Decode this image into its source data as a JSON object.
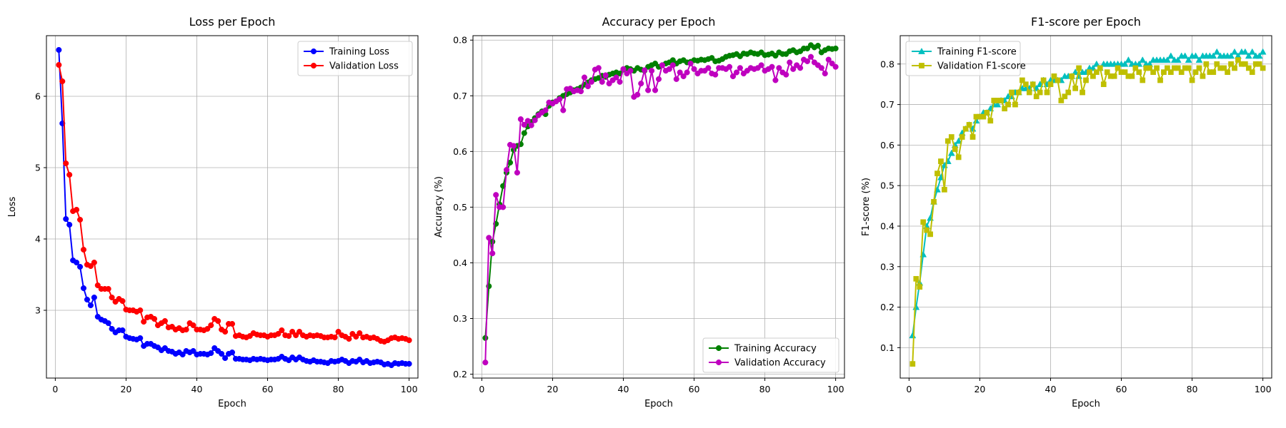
{
  "chart_data": [
    {
      "type": "line",
      "title": "Loss per Epoch",
      "xlabel": "Epoch",
      "ylabel": "Loss",
      "xlim": [
        -2.5,
        102.5
      ],
      "ylim": [
        2.05,
        6.85
      ],
      "xticks": [
        0,
        20,
        40,
        60,
        80,
        100
      ],
      "yticks": [
        3,
        4,
        5,
        6
      ],
      "grid": true,
      "legend_position": "upper right",
      "x": [
        1,
        2,
        3,
        4,
        5,
        6,
        7,
        8,
        9,
        10,
        11,
        12,
        13,
        14,
        15,
        16,
        17,
        18,
        19,
        20,
        21,
        22,
        23,
        24,
        25,
        26,
        27,
        28,
        29,
        30,
        31,
        32,
        33,
        34,
        35,
        36,
        37,
        38,
        39,
        40,
        41,
        42,
        43,
        44,
        45,
        46,
        47,
        48,
        49,
        50,
        51,
        52,
        53,
        54,
        55,
        56,
        57,
        58,
        59,
        60,
        61,
        62,
        63,
        64,
        65,
        66,
        67,
        68,
        69,
        70,
        71,
        72,
        73,
        74,
        75,
        76,
        77,
        78,
        79,
        80,
        81,
        82,
        83,
        84,
        85,
        86,
        87,
        88,
        89,
        90,
        91,
        92,
        93,
        94,
        95,
        96,
        97,
        98,
        99,
        100
      ],
      "series": [
        {
          "name": "Training Loss",
          "color": "#0000ff",
          "marker": "circle",
          "values": [
            6.65,
            5.62,
            4.28,
            4.2,
            3.7,
            3.67,
            3.61,
            3.31,
            3.15,
            3.07,
            3.18,
            2.91,
            2.87,
            2.85,
            2.82,
            2.74,
            2.69,
            2.72,
            2.72,
            2.63,
            2.61,
            2.6,
            2.59,
            2.61,
            2.5,
            2.53,
            2.53,
            2.5,
            2.48,
            2.44,
            2.47,
            2.43,
            2.42,
            2.39,
            2.41,
            2.38,
            2.43,
            2.41,
            2.43,
            2.38,
            2.39,
            2.39,
            2.38,
            2.4,
            2.47,
            2.43,
            2.39,
            2.33,
            2.39,
            2.41,
            2.32,
            2.32,
            2.31,
            2.31,
            2.3,
            2.32,
            2.31,
            2.32,
            2.31,
            2.3,
            2.31,
            2.31,
            2.32,
            2.35,
            2.32,
            2.3,
            2.34,
            2.31,
            2.34,
            2.31,
            2.29,
            2.28,
            2.3,
            2.28,
            2.28,
            2.27,
            2.26,
            2.29,
            2.28,
            2.29,
            2.31,
            2.29,
            2.26,
            2.29,
            2.28,
            2.31,
            2.27,
            2.29,
            2.26,
            2.27,
            2.28,
            2.27,
            2.24,
            2.25,
            2.23,
            2.26,
            2.25,
            2.26,
            2.25,
            2.25
          ]
        },
        {
          "name": "Validation Loss",
          "color": "#ff0000",
          "marker": "circle",
          "values": [
            6.44,
            6.21,
            5.06,
            4.9,
            4.39,
            4.41,
            4.27,
            3.85,
            3.64,
            3.62,
            3.67,
            3.35,
            3.3,
            3.3,
            3.3,
            3.18,
            3.12,
            3.16,
            3.13,
            3.01,
            3.0,
            3.0,
            2.98,
            3.0,
            2.84,
            2.9,
            2.91,
            2.88,
            2.79,
            2.82,
            2.85,
            2.76,
            2.77,
            2.73,
            2.75,
            2.72,
            2.73,
            2.82,
            2.79,
            2.73,
            2.73,
            2.72,
            2.74,
            2.79,
            2.88,
            2.85,
            2.73,
            2.7,
            2.81,
            2.81,
            2.64,
            2.65,
            2.63,
            2.62,
            2.64,
            2.68,
            2.66,
            2.65,
            2.65,
            2.63,
            2.65,
            2.65,
            2.67,
            2.72,
            2.65,
            2.64,
            2.7,
            2.65,
            2.7,
            2.65,
            2.63,
            2.65,
            2.64,
            2.65,
            2.64,
            2.62,
            2.62,
            2.63,
            2.62,
            2.7,
            2.65,
            2.63,
            2.6,
            2.67,
            2.63,
            2.68,
            2.62,
            2.63,
            2.61,
            2.62,
            2.6,
            2.57,
            2.56,
            2.58,
            2.61,
            2.62,
            2.6,
            2.61,
            2.6,
            2.58
          ]
        }
      ]
    },
    {
      "type": "line",
      "title": "Accuracy per Epoch",
      "xlabel": "Epoch",
      "ylabel": "Accuracy (%)",
      "xlim": [
        -2.5,
        102.5
      ],
      "ylim": [
        0.193,
        0.808
      ],
      "xticks": [
        0,
        20,
        40,
        60,
        80,
        100
      ],
      "yticks": [
        0.2,
        0.3,
        0.4,
        0.5,
        0.6,
        0.7,
        0.8
      ],
      "grid": true,
      "legend_position": "lower right",
      "x": [
        1,
        2,
        3,
        4,
        5,
        6,
        7,
        8,
        9,
        10,
        11,
        12,
        13,
        14,
        15,
        16,
        17,
        18,
        19,
        20,
        21,
        22,
        23,
        24,
        25,
        26,
        27,
        28,
        29,
        30,
        31,
        32,
        33,
        34,
        35,
        36,
        37,
        38,
        39,
        40,
        41,
        42,
        43,
        44,
        45,
        46,
        47,
        48,
        49,
        50,
        51,
        52,
        53,
        54,
        55,
        56,
        57,
        58,
        59,
        60,
        61,
        62,
        63,
        64,
        65,
        66,
        67,
        68,
        69,
        70,
        71,
        72,
        73,
        74,
        75,
        76,
        77,
        78,
        79,
        80,
        81,
        82,
        83,
        84,
        85,
        86,
        87,
        88,
        89,
        90,
        91,
        92,
        93,
        94,
        95,
        96,
        97,
        98,
        99,
        100
      ],
      "series": [
        {
          "name": "Training Accuracy",
          "color": "#008000",
          "marker": "circle",
          "values": [
            0.265,
            0.358,
            0.438,
            0.47,
            0.505,
            0.538,
            0.562,
            0.58,
            0.603,
            0.61,
            0.613,
            0.633,
            0.645,
            0.653,
            0.66,
            0.667,
            0.672,
            0.667,
            0.682,
            0.688,
            0.69,
            0.696,
            0.7,
            0.703,
            0.706,
            0.71,
            0.712,
            0.715,
            0.72,
            0.724,
            0.728,
            0.73,
            0.732,
            0.736,
            0.734,
            0.738,
            0.74,
            0.742,
            0.74,
            0.747,
            0.75,
            0.748,
            0.745,
            0.75,
            0.747,
            0.745,
            0.752,
            0.755,
            0.758,
            0.752,
            0.755,
            0.758,
            0.76,
            0.764,
            0.758,
            0.762,
            0.764,
            0.76,
            0.761,
            0.764,
            0.763,
            0.765,
            0.764,
            0.766,
            0.768,
            0.762,
            0.763,
            0.766,
            0.77,
            0.772,
            0.773,
            0.775,
            0.771,
            0.776,
            0.775,
            0.778,
            0.776,
            0.775,
            0.778,
            0.773,
            0.774,
            0.776,
            0.772,
            0.778,
            0.775,
            0.775,
            0.78,
            0.782,
            0.778,
            0.78,
            0.785,
            0.785,
            0.791,
            0.787,
            0.79,
            0.778,
            0.782,
            0.785,
            0.784,
            0.785
          ]
        },
        {
          "name": "Validation Accuracy",
          "color": "#bf00bf",
          "marker": "circle",
          "values": [
            0.221,
            0.445,
            0.417,
            0.522,
            0.5,
            0.5,
            0.567,
            0.612,
            0.61,
            0.562,
            0.658,
            0.648,
            0.655,
            0.647,
            0.656,
            0.665,
            0.67,
            0.674,
            0.688,
            0.686,
            0.69,
            0.694,
            0.674,
            0.712,
            0.713,
            0.708,
            0.71,
            0.708,
            0.733,
            0.717,
            0.725,
            0.747,
            0.75,
            0.725,
            0.737,
            0.722,
            0.728,
            0.733,
            0.725,
            0.748,
            0.74,
            0.745,
            0.698,
            0.702,
            0.722,
            0.746,
            0.71,
            0.745,
            0.71,
            0.73,
            0.755,
            0.745,
            0.748,
            0.755,
            0.73,
            0.742,
            0.735,
            0.742,
            0.758,
            0.748,
            0.74,
            0.745,
            0.745,
            0.75,
            0.74,
            0.738,
            0.75,
            0.75,
            0.748,
            0.752,
            0.735,
            0.742,
            0.75,
            0.74,
            0.745,
            0.75,
            0.748,
            0.75,
            0.755,
            0.745,
            0.748,
            0.752,
            0.728,
            0.75,
            0.742,
            0.738,
            0.76,
            0.748,
            0.755,
            0.75,
            0.765,
            0.762,
            0.77,
            0.76,
            0.755,
            0.75,
            0.74,
            0.765,
            0.758,
            0.752
          ]
        }
      ]
    },
    {
      "type": "line",
      "title": "F1-score per Epoch",
      "xlabel": "Epoch",
      "ylabel": "F1-score (%)",
      "xlim": [
        -2.5,
        102.5
      ],
      "ylim": [
        0.025,
        0.87
      ],
      "xticks": [
        0,
        20,
        40,
        60,
        80,
        100
      ],
      "yticks": [
        0.1,
        0.2,
        0.3,
        0.4,
        0.5,
        0.6,
        0.7,
        0.8
      ],
      "grid": true,
      "legend_position": "upper left",
      "x": [
        1,
        2,
        3,
        4,
        5,
        6,
        7,
        8,
        9,
        10,
        11,
        12,
        13,
        14,
        15,
        16,
        17,
        18,
        19,
        20,
        21,
        22,
        23,
        24,
        25,
        26,
        27,
        28,
        29,
        30,
        31,
        32,
        33,
        34,
        35,
        36,
        37,
        38,
        39,
        40,
        41,
        42,
        43,
        44,
        45,
        46,
        47,
        48,
        49,
        50,
        51,
        52,
        53,
        54,
        55,
        56,
        57,
        58,
        59,
        60,
        61,
        62,
        63,
        64,
        65,
        66,
        67,
        68,
        69,
        70,
        71,
        72,
        73,
        74,
        75,
        76,
        77,
        78,
        79,
        80,
        81,
        82,
        83,
        84,
        85,
        86,
        87,
        88,
        89,
        90,
        91,
        92,
        93,
        94,
        95,
        96,
        97,
        98,
        99,
        100
      ],
      "series": [
        {
          "name": "Training F1-score",
          "color": "#00bfbf",
          "marker": "triangle",
          "values": [
            0.13,
            0.2,
            0.26,
            0.33,
            0.4,
            0.42,
            0.46,
            0.49,
            0.52,
            0.55,
            0.56,
            0.58,
            0.6,
            0.61,
            0.63,
            0.64,
            0.65,
            0.64,
            0.66,
            0.67,
            0.68,
            0.68,
            0.69,
            0.7,
            0.7,
            0.71,
            0.71,
            0.72,
            0.72,
            0.73,
            0.73,
            0.74,
            0.74,
            0.74,
            0.75,
            0.74,
            0.75,
            0.76,
            0.75,
            0.76,
            0.76,
            0.76,
            0.76,
            0.77,
            0.77,
            0.77,
            0.78,
            0.77,
            0.78,
            0.78,
            0.79,
            0.79,
            0.8,
            0.79,
            0.8,
            0.8,
            0.8,
            0.8,
            0.8,
            0.8,
            0.8,
            0.81,
            0.8,
            0.8,
            0.8,
            0.81,
            0.8,
            0.8,
            0.81,
            0.81,
            0.81,
            0.81,
            0.81,
            0.82,
            0.81,
            0.81,
            0.82,
            0.82,
            0.81,
            0.82,
            0.82,
            0.81,
            0.82,
            0.82,
            0.82,
            0.82,
            0.83,
            0.82,
            0.82,
            0.82,
            0.82,
            0.83,
            0.82,
            0.83,
            0.83,
            0.82,
            0.83,
            0.82,
            0.82,
            0.83
          ]
        },
        {
          "name": "Validation F1-score",
          "color": "#bfbf00",
          "marker": "square",
          "values": [
            0.06,
            0.27,
            0.25,
            0.41,
            0.39,
            0.38,
            0.46,
            0.53,
            0.56,
            0.49,
            0.61,
            0.62,
            0.59,
            0.57,
            0.62,
            0.64,
            0.65,
            0.62,
            0.67,
            0.67,
            0.67,
            0.68,
            0.66,
            0.71,
            0.71,
            0.71,
            0.69,
            0.7,
            0.73,
            0.7,
            0.73,
            0.76,
            0.75,
            0.73,
            0.75,
            0.72,
            0.73,
            0.76,
            0.73,
            0.75,
            0.77,
            0.76,
            0.71,
            0.72,
            0.73,
            0.77,
            0.74,
            0.79,
            0.73,
            0.76,
            0.78,
            0.77,
            0.78,
            0.79,
            0.75,
            0.78,
            0.77,
            0.77,
            0.79,
            0.78,
            0.78,
            0.77,
            0.77,
            0.79,
            0.78,
            0.76,
            0.79,
            0.79,
            0.78,
            0.79,
            0.76,
            0.78,
            0.79,
            0.78,
            0.79,
            0.79,
            0.78,
            0.79,
            0.79,
            0.76,
            0.78,
            0.79,
            0.77,
            0.8,
            0.78,
            0.78,
            0.8,
            0.79,
            0.79,
            0.78,
            0.8,
            0.79,
            0.81,
            0.8,
            0.8,
            0.79,
            0.78,
            0.8,
            0.8,
            0.79
          ]
        }
      ]
    }
  ]
}
